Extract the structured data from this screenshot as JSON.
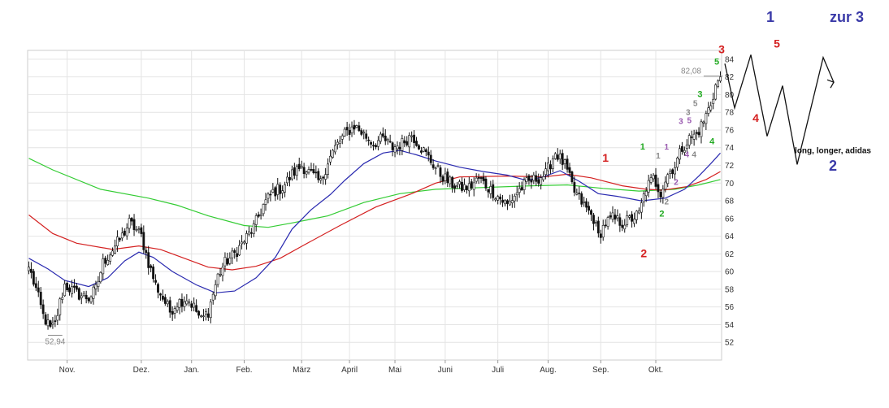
{
  "chart_data": {
    "type": "candlestick",
    "x_labels": [
      "Nov.",
      "Dez.",
      "Jan.",
      "Feb.",
      "März",
      "April",
      "Mai",
      "Juni",
      "Juli",
      "Aug.",
      "Sep.",
      "Okt."
    ],
    "y_ticks": [
      52,
      54,
      56,
      58,
      60,
      62,
      64,
      66,
      68,
      70,
      72,
      74,
      76,
      78,
      80,
      82,
      84
    ],
    "ylim": [
      50,
      85
    ],
    "grid": true,
    "min_label": "52,94",
    "max_label": "82,08",
    "colors": {
      "candle_up": "#ffffff",
      "candle_down": "#111111",
      "ma_fast": "#2a2ab0",
      "ma_mid": "#d42020",
      "ma_slow": "#33cc33",
      "grid": "#e4e4e4",
      "ann_red": "#d42020",
      "ann_green": "#22aa22",
      "ann_purple": "#9a5ab0",
      "ann_gray": "#888888",
      "ann_blue": "#3a3aa8"
    },
    "close_anchors": [
      [
        0,
        60.5
      ],
      [
        3,
        58
      ],
      [
        6,
        55
      ],
      [
        9,
        53.5
      ],
      [
        11,
        54
      ],
      [
        13,
        56.5
      ],
      [
        15,
        58.5
      ],
      [
        20,
        57.5
      ],
      [
        25,
        57
      ],
      [
        28,
        58
      ],
      [
        31,
        61
      ],
      [
        35,
        62.5
      ],
      [
        39,
        64
      ],
      [
        42,
        65.5
      ],
      [
        44,
        65
      ],
      [
        47,
        64
      ],
      [
        50,
        61
      ],
      [
        53,
        58.5
      ],
      [
        56,
        57
      ],
      [
        59,
        55.5
      ],
      [
        62,
        56.5
      ],
      [
        66,
        57
      ],
      [
        69,
        56
      ],
      [
        72,
        54.5
      ],
      [
        75,
        55.5
      ],
      [
        79,
        59.5
      ],
      [
        82,
        61
      ],
      [
        86,
        62
      ],
      [
        90,
        63.5
      ],
      [
        94,
        65
      ],
      [
        98,
        67.5
      ],
      [
        102,
        69
      ],
      [
        106,
        69.5
      ],
      [
        110,
        71
      ],
      [
        114,
        72
      ],
      [
        118,
        71
      ],
      [
        122,
        70
      ],
      [
        125,
        72.5
      ],
      [
        128,
        74
      ],
      [
        132,
        75.5
      ],
      [
        136,
        76.5
      ],
      [
        140,
        75.5
      ],
      [
        144,
        74.5
      ],
      [
        148,
        75
      ],
      [
        152,
        74
      ],
      [
        156,
        74.5
      ],
      [
        160,
        75.5
      ],
      [
        164,
        74
      ],
      [
        168,
        72.5
      ],
      [
        172,
        71
      ],
      [
        176,
        70
      ],
      [
        180,
        69.5
      ],
      [
        184,
        69.5
      ],
      [
        188,
        70.5
      ],
      [
        192,
        69.5
      ],
      [
        196,
        68.5
      ],
      [
        200,
        67.5
      ],
      [
        204,
        69
      ],
      [
        208,
        70
      ],
      [
        212,
        70.5
      ],
      [
        216,
        71
      ],
      [
        220,
        73.5
      ],
      [
        224,
        72
      ],
      [
        228,
        69
      ],
      [
        232,
        67.5
      ],
      [
        236,
        66
      ],
      [
        238,
        64
      ],
      [
        241,
        65.5
      ],
      [
        244,
        66
      ],
      [
        248,
        65.5
      ],
      [
        252,
        66
      ],
      [
        255,
        66.5
      ],
      [
        258,
        69.5
      ],
      [
        261,
        70.5
      ],
      [
        264,
        69
      ],
      [
        267,
        71
      ],
      [
        270,
        72
      ],
      [
        273,
        74
      ],
      [
        276,
        75
      ],
      [
        279,
        75.5
      ],
      [
        282,
        77
      ],
      [
        285,
        79
      ],
      [
        287,
        81
      ],
      [
        289,
        82
      ]
    ],
    "series": [
      {
        "name": "",
        "style": "ma_slow",
        "points": [
          [
            0,
            72.8
          ],
          [
            10,
            71.5
          ],
          [
            30,
            69.3
          ],
          [
            50,
            68.3
          ],
          [
            62,
            67.5
          ],
          [
            75,
            66.3
          ],
          [
            90,
            65.2
          ],
          [
            100,
            65
          ],
          [
            110,
            65.5
          ],
          [
            125,
            66.3
          ],
          [
            140,
            67.8
          ],
          [
            155,
            68.8
          ],
          [
            170,
            69.3
          ],
          [
            190,
            69.5
          ],
          [
            210,
            69.7
          ],
          [
            225,
            69.8
          ],
          [
            240,
            69.4
          ],
          [
            255,
            69.1
          ],
          [
            270,
            69.3
          ],
          [
            280,
            69.8
          ],
          [
            289,
            70.4
          ]
        ]
      },
      {
        "name": "",
        "style": "ma_mid",
        "points": [
          [
            0,
            66.4
          ],
          [
            10,
            64.3
          ],
          [
            20,
            63.2
          ],
          [
            35,
            62.5
          ],
          [
            46,
            62.9
          ],
          [
            55,
            62.5
          ],
          [
            65,
            61.5
          ],
          [
            75,
            60.5
          ],
          [
            85,
            60.2
          ],
          [
            95,
            60.6
          ],
          [
            105,
            61.5
          ],
          [
            115,
            63
          ],
          [
            130,
            65.2
          ],
          [
            145,
            67.3
          ],
          [
            160,
            68.8
          ],
          [
            170,
            70
          ],
          [
            180,
            70.7
          ],
          [
            200,
            70.8
          ],
          [
            215,
            70.7
          ],
          [
            225,
            71
          ],
          [
            235,
            70.6
          ],
          [
            248,
            69.7
          ],
          [
            258,
            69.3
          ],
          [
            265,
            69.2
          ],
          [
            275,
            69.6
          ],
          [
            283,
            70.4
          ],
          [
            289,
            71.3
          ]
        ]
      },
      {
        "name": "",
        "style": "ma_fast",
        "points": [
          [
            0,
            61.5
          ],
          [
            8,
            60.3
          ],
          [
            15,
            59
          ],
          [
            25,
            58.3
          ],
          [
            33,
            59.3
          ],
          [
            40,
            61.2
          ],
          [
            46,
            62.2
          ],
          [
            52,
            61.6
          ],
          [
            60,
            60
          ],
          [
            70,
            58.5
          ],
          [
            78,
            57.6
          ],
          [
            86,
            57.8
          ],
          [
            95,
            59.3
          ],
          [
            103,
            61.6
          ],
          [
            110,
            64.8
          ],
          [
            118,
            67
          ],
          [
            126,
            68.7
          ],
          [
            132,
            70.3
          ],
          [
            140,
            72.2
          ],
          [
            148,
            73.4
          ],
          [
            155,
            73.7
          ],
          [
            162,
            73.2
          ],
          [
            170,
            72.5
          ],
          [
            180,
            71.8
          ],
          [
            190,
            71.3
          ],
          [
            200,
            70.9
          ],
          [
            208,
            70.3
          ],
          [
            215,
            70.7
          ],
          [
            222,
            71.4
          ],
          [
            230,
            70.2
          ],
          [
            238,
            68.8
          ],
          [
            246,
            68.5
          ],
          [
            256,
            68
          ],
          [
            266,
            68.3
          ],
          [
            274,
            69.3
          ],
          [
            280,
            70.8
          ],
          [
            285,
            72.2
          ],
          [
            289,
            73.4
          ]
        ]
      }
    ],
    "annotations": [
      {
        "text": "1",
        "x": 241,
        "y": 72.4,
        "color": "ann_red",
        "size": 14
      },
      {
        "text": "2",
        "x": 257,
        "y": 61.6,
        "color": "ann_red",
        "size": 14
      },
      {
        "text": "3",
        "x": 289.5,
        "y": 84.7,
        "color": "ann_red",
        "size": 14
      },
      {
        "text": "1",
        "x": 256.5,
        "y": 73.8,
        "color": "ann_green",
        "size": 11
      },
      {
        "text": "2",
        "x": 264.5,
        "y": 66.2,
        "color": "ann_green",
        "size": 11
      },
      {
        "text": "3",
        "x": 280.5,
        "y": 79.7,
        "color": "ann_green",
        "size": 11
      },
      {
        "text": "4",
        "x": 285.5,
        "y": 74.4,
        "color": "ann_green",
        "size": 11
      },
      {
        "text": "5",
        "x": 287.5,
        "y": 83.4,
        "color": "ann_green",
        "size": 11
      },
      {
        "text": "1",
        "x": 263,
        "y": 72.8,
        "color": "ann_gray",
        "size": 10
      },
      {
        "text": "2",
        "x": 266.5,
        "y": 67.6,
        "color": "ann_gray",
        "size": 10
      },
      {
        "text": "3",
        "x": 275.5,
        "y": 77.7,
        "color": "ann_gray",
        "size": 10
      },
      {
        "text": "4",
        "x": 278,
        "y": 72.9,
        "color": "ann_gray",
        "size": 10
      },
      {
        "text": "5",
        "x": 278.5,
        "y": 78.7,
        "color": "ann_gray",
        "size": 10
      },
      {
        "text": "1",
        "x": 266.5,
        "y": 73.8,
        "color": "ann_purple",
        "size": 10
      },
      {
        "text": "2",
        "x": 270.5,
        "y": 69.8,
        "color": "ann_purple",
        "size": 10
      },
      {
        "text": "3",
        "x": 272.5,
        "y": 76.7,
        "color": "ann_purple",
        "size": 10
      },
      {
        "text": "4",
        "x": 275,
        "y": 72.9,
        "color": "ann_purple",
        "size": 10
      },
      {
        "text": "5",
        "x": 276,
        "y": 76.8,
        "color": "ann_purple",
        "size": 10
      }
    ]
  },
  "projection": {
    "color": "#111111",
    "points": [
      [
        0,
        83.5
      ],
      [
        12,
        78.5
      ],
      [
        32,
        84.5
      ],
      [
        52,
        75.3
      ],
      [
        71,
        81
      ],
      [
        89,
        72.1
      ],
      [
        121,
        84.2
      ],
      [
        134,
        81.4
      ]
    ],
    "labels": [
      {
        "text": "1",
        "x": 56,
        "y": 88.2,
        "color": "ann_blue",
        "size": 18
      },
      {
        "text": "5",
        "x": 64,
        "y": 85.3,
        "color": "ann_red",
        "size": 14
      },
      {
        "text": "4",
        "x": 38,
        "y": 76.9,
        "color": "ann_red",
        "size": 14
      },
      {
        "text": "zur 3",
        "x": 150,
        "y": 88.2,
        "color": "ann_blue",
        "size": 18
      },
      {
        "text": "long, longer, adidas",
        "x": 133,
        "y": 73.4,
        "color": "#111111",
        "size": 10
      },
      {
        "text": "2",
        "x": 133,
        "y": 71.4,
        "color": "ann_blue",
        "size": 18
      }
    ]
  }
}
